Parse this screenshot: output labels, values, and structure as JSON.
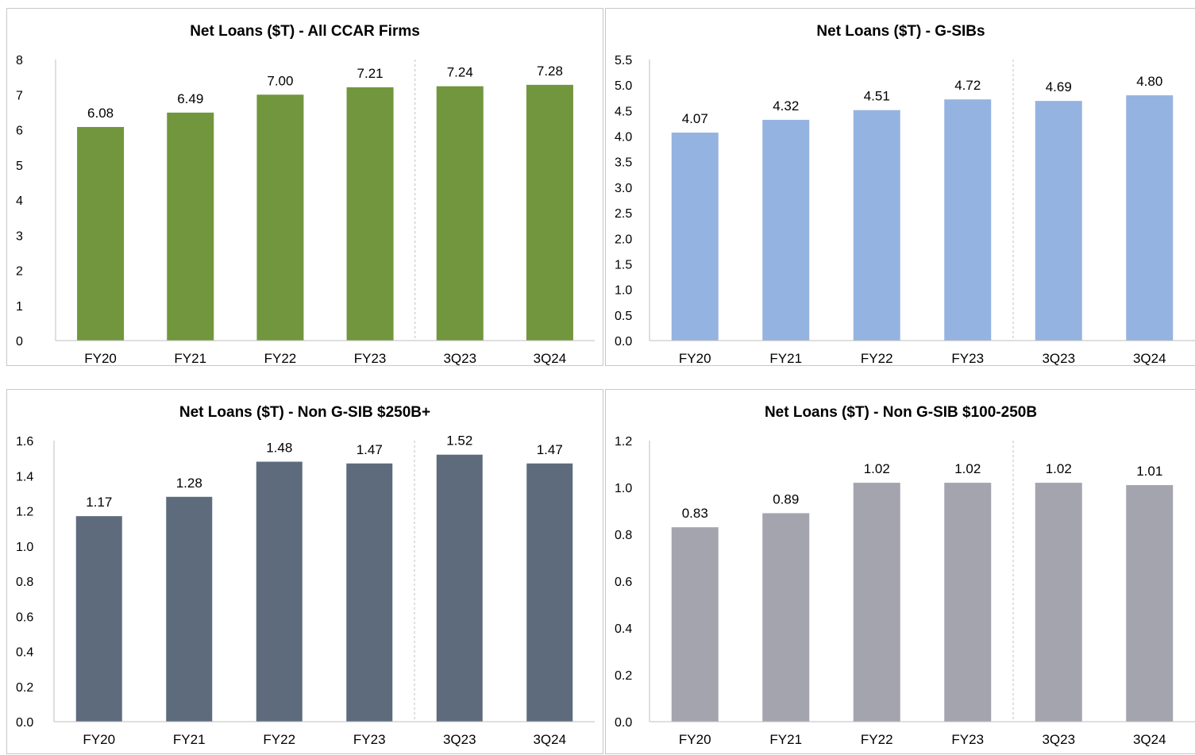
{
  "chart_data": [
    {
      "type": "bar",
      "title": "Net Loans ($T) - All CCAR Firms",
      "categories": [
        "FY20",
        "FY21",
        "FY22",
        "FY23",
        "3Q23",
        "3Q24"
      ],
      "values": [
        6.08,
        6.49,
        7.0,
        7.21,
        7.24,
        7.28
      ],
      "value_labels": [
        "6.08",
        "6.49",
        "7.00",
        "7.21",
        "7.24",
        "7.28"
      ],
      "ylim": [
        0,
        8
      ],
      "y_ticks": [
        0,
        1,
        2,
        3,
        4,
        5,
        6,
        7,
        8
      ],
      "y_tick_labels": [
        "0",
        "1",
        "2",
        "3",
        "4",
        "5",
        "6",
        "7",
        "8"
      ],
      "color": "#71963d",
      "divider_after_index": 3,
      "grid": false
    },
    {
      "type": "bar",
      "title": "Net Loans ($T) - G-SIBs",
      "categories": [
        "FY20",
        "FY21",
        "FY22",
        "FY23",
        "3Q23",
        "3Q24"
      ],
      "values": [
        4.07,
        4.32,
        4.51,
        4.72,
        4.69,
        4.8
      ],
      "value_labels": [
        "4.07",
        "4.32",
        "4.51",
        "4.72",
        "4.69",
        "4.80"
      ],
      "ylim": [
        0,
        5.5
      ],
      "y_ticks": [
        0,
        0.5,
        1,
        1.5,
        2,
        2.5,
        3,
        3.5,
        4,
        4.5,
        5,
        5.5
      ],
      "y_tick_labels": [
        "0.0",
        "0.5",
        "1.0",
        "1.5",
        "2.0",
        "2.5",
        "3.0",
        "3.5",
        "4.0",
        "4.5",
        "5.0",
        "5.5"
      ],
      "color": "#95b3e0",
      "divider_after_index": 3,
      "grid": false
    },
    {
      "type": "bar",
      "title": "Net Loans ($T) - Non G-SIB $250B+",
      "categories": [
        "FY20",
        "FY21",
        "FY22",
        "FY23",
        "3Q23",
        "3Q24"
      ],
      "values": [
        1.17,
        1.28,
        1.48,
        1.47,
        1.52,
        1.47
      ],
      "value_labels": [
        "1.17",
        "1.28",
        "1.48",
        "1.47",
        "1.52",
        "1.47"
      ],
      "ylim": [
        0,
        1.6
      ],
      "y_ticks": [
        0,
        0.2,
        0.4,
        0.6,
        0.8,
        1.0,
        1.2,
        1.4,
        1.6
      ],
      "y_tick_labels": [
        "0.0",
        "0.2",
        "0.4",
        "0.6",
        "0.8",
        "1.0",
        "1.2",
        "1.4",
        "1.6"
      ],
      "color": "#5d6b7d",
      "divider_after_index": 3,
      "grid": false
    },
    {
      "type": "bar",
      "title": "Net Loans ($T) - Non G-SIB $100-250B",
      "categories": [
        "FY20",
        "FY21",
        "FY22",
        "FY23",
        "3Q23",
        "3Q24"
      ],
      "values": [
        0.83,
        0.89,
        1.02,
        1.02,
        1.02,
        1.01
      ],
      "value_labels": [
        "0.83",
        "0.89",
        "1.02",
        "1.02",
        "1.02",
        "1.01"
      ],
      "ylim": [
        0,
        1.2
      ],
      "y_ticks": [
        0,
        0.2,
        0.4,
        0.6,
        0.8,
        1.0,
        1.2
      ],
      "y_tick_labels": [
        "0.0",
        "0.2",
        "0.4",
        "0.6",
        "0.8",
        "1.0",
        "1.2"
      ],
      "color": "#a3a4ae",
      "divider_after_index": 3,
      "grid": false
    }
  ]
}
